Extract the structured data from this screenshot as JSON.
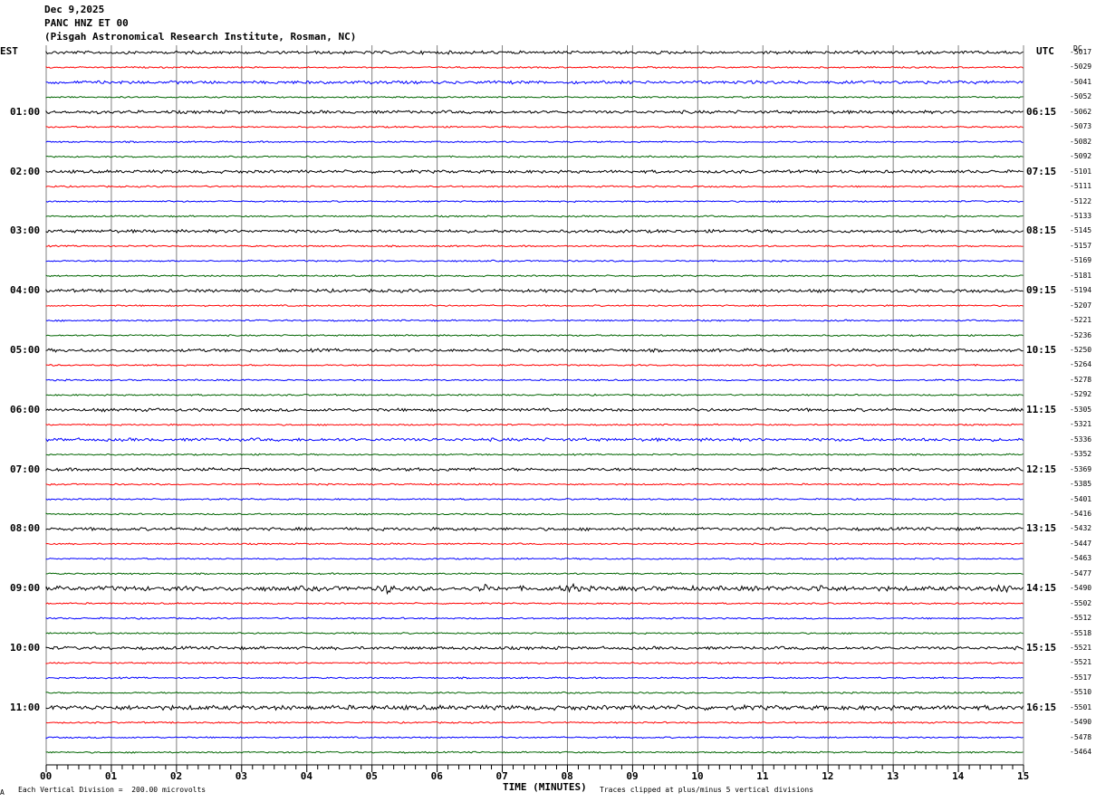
{
  "header": {
    "date": "Dec 9,2025",
    "station": "PANC HNZ ET 00",
    "site": "(Pisgah Astronomical Research Institute, Rosman, NC)"
  },
  "left_timezone": "EST",
  "right_timezone": "UTC",
  "dc_label": "DC",
  "footer": {
    "vertical_division": "Each Vertical Division =  200.00 microvolts",
    "xlabel": "TIME (MINUTES)",
    "clip_note": "Traces clipped at plus/minus 5 vertical divisions",
    "corner_mark": "A"
  },
  "colors": {
    "line1": "#000000",
    "line2": "#ff0000",
    "line3": "#0000ff",
    "line4": "#006400",
    "grid": "#808080"
  },
  "chart_data": {
    "type": "line",
    "title": "PANC HNZ ET 00",
    "xlabel": "TIME (MINUTES)",
    "xlim": [
      0,
      15
    ],
    "x_ticks": [
      "00",
      "01",
      "02",
      "03",
      "04",
      "05",
      "06",
      "07",
      "08",
      "09",
      "10",
      "11",
      "12",
      "13",
      "14",
      "15"
    ],
    "left_hour_labels": [
      "01:00",
      "02:00",
      "03:00",
      "04:00",
      "05:00",
      "06:00",
      "07:00",
      "08:00",
      "09:00",
      "10:00",
      "11:00"
    ],
    "right_hour_labels": [
      "06:15",
      "07:15",
      "08:15",
      "09:15",
      "10:15",
      "11:15",
      "12:15",
      "13:15",
      "14:15",
      "15:15",
      "16:15"
    ],
    "dc_offsets": [
      "-5017",
      "-5029",
      "-5041",
      "-5052",
      "-5062",
      "-5073",
      "-5082",
      "-5092",
      "-5101",
      "-5111",
      "-5122",
      "-5133",
      "-5145",
      "-5157",
      "-5169",
      "-5181",
      "-5194",
      "-5207",
      "-5221",
      "-5236",
      "-5250",
      "-5264",
      "-5278",
      "-5292",
      "-5305",
      "-5321",
      "-5336",
      "-5352",
      "-5369",
      "-5385",
      "-5401",
      "-5416",
      "-5432",
      "-5447",
      "-5463",
      "-5477",
      "-5490",
      "-5502",
      "-5512",
      "-5518",
      "-5521",
      "-5521",
      "-5517",
      "-5510",
      "-5501",
      "-5490",
      "-5478",
      "-5464"
    ],
    "noise_level": [
      2,
      1,
      2,
      1,
      2,
      1,
      1,
      1,
      2,
      1,
      1,
      1,
      2,
      1,
      1,
      1,
      2,
      1,
      1,
      1,
      2,
      1,
      1,
      1,
      2,
      1,
      2,
      1,
      2,
      1,
      1,
      1,
      2,
      1,
      1,
      1,
      3,
      1,
      1,
      1,
      2,
      1,
      1,
      1,
      3,
      1,
      1,
      1
    ],
    "events": [
      {
        "line": 36,
        "minute": 5.25,
        "amplitude": 4
      },
      {
        "line": 36,
        "minute": 6.7,
        "amplitude": 3
      },
      {
        "line": 36,
        "minute": 8.05,
        "amplitude": 5
      },
      {
        "line": 36,
        "minute": 11.9,
        "amplitude": 3
      },
      {
        "line": 36,
        "minute": 14.7,
        "amplitude": 3
      }
    ]
  }
}
